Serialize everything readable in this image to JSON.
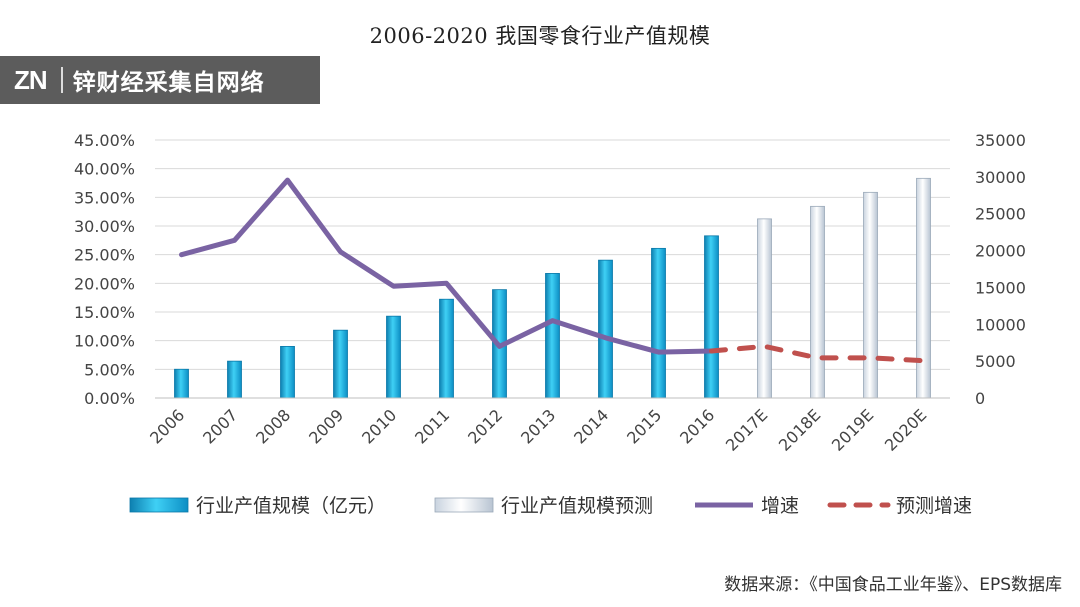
{
  "title": "2006-2020 我国零食行业产值规模",
  "watermark": {
    "logo": "ZN",
    "text": "锌财经采集自网络"
  },
  "source": "数据来源：《中国食品工业年鉴》、EPS数据库",
  "colors": {
    "bar_actual": "#1aa7d8",
    "bar_forecast": "#e6ecf3",
    "line_growth": "#7a63a3",
    "line_forecast": "#c0504d",
    "grid": "#d9d9d9",
    "axis_text": "#444444"
  },
  "chart_data": {
    "type": "bar",
    "title": "2006-2020 我国零食行业产值规模",
    "categories": [
      "2006",
      "2007",
      "2008",
      "2009",
      "2010",
      "2011",
      "2012",
      "2013",
      "2014",
      "2015",
      "2016",
      "2017E",
      "2018E",
      "2019E",
      "2020E"
    ],
    "left_axis": {
      "ticks": [
        "0.00%",
        "5.00%",
        "10.00%",
        "15.00%",
        "20.00%",
        "25.00%",
        "30.00%",
        "35.00%",
        "40.00%",
        "45.00%"
      ],
      "ylim": [
        0,
        45
      ]
    },
    "right_axis": {
      "ticks": [
        "0",
        "5000",
        "10000",
        "15000",
        "20000",
        "25000",
        "30000",
        "35000"
      ],
      "ylim": [
        0,
        35000
      ]
    },
    "series": [
      {
        "name": "行业产值规模（亿元）",
        "type": "bar",
        "axis": "right",
        "style": "actual",
        "values": [
          3900,
          5000,
          7000,
          9200,
          11100,
          13400,
          14700,
          16900,
          18700,
          20300,
          22000,
          null,
          null,
          null,
          null
        ]
      },
      {
        "name": "行业产值规模预测",
        "type": "bar",
        "axis": "right",
        "style": "forecast",
        "values": [
          null,
          null,
          null,
          null,
          null,
          null,
          null,
          null,
          null,
          null,
          null,
          24300,
          26000,
          27900,
          29800
        ]
      },
      {
        "name": "增速",
        "type": "line",
        "axis": "left",
        "style": "solid",
        "values": [
          25.0,
          27.5,
          38.0,
          25.5,
          19.5,
          20.0,
          9.0,
          13.5,
          10.5,
          8.0,
          8.2,
          null,
          null,
          null,
          null
        ]
      },
      {
        "name": "预测增速",
        "type": "line",
        "axis": "left",
        "style": "dashed",
        "values": [
          null,
          null,
          null,
          null,
          null,
          null,
          null,
          null,
          null,
          null,
          8.2,
          9.0,
          7.0,
          7.0,
          6.5
        ]
      }
    ]
  }
}
